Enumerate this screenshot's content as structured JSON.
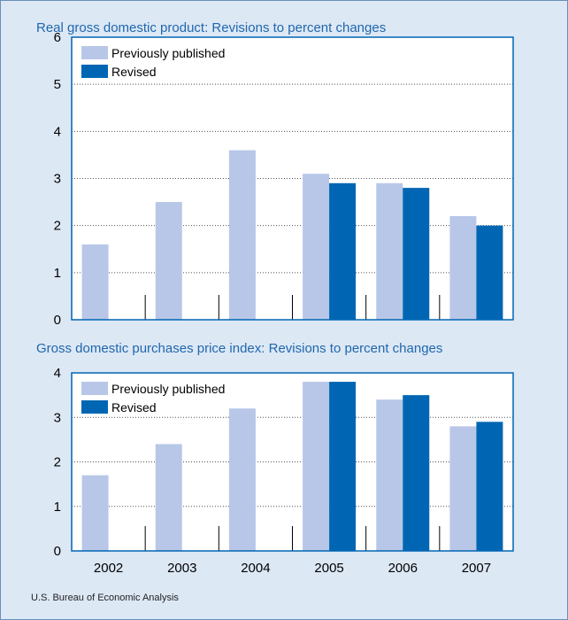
{
  "chart_data": [
    {
      "type": "bar",
      "title": "Real gross domestic product: Revisions to percent changes",
      "categories": [
        "2002",
        "2003",
        "2004",
        "2005",
        "2006",
        "2007"
      ],
      "series": [
        {
          "name": "Previously published",
          "values": [
            1.6,
            2.5,
            3.6,
            3.1,
            2.9,
            2.2
          ],
          "color": "#b8c7e8"
        },
        {
          "name": "Revised",
          "values": [
            null,
            null,
            null,
            2.9,
            2.8,
            2.0
          ],
          "color": "#0066b3"
        }
      ],
      "ylim": [
        0,
        6
      ],
      "yticks": [
        "0",
        "1",
        "2",
        "3",
        "4",
        "5",
        "6"
      ],
      "grid": true,
      "legend": "top-left"
    },
    {
      "type": "bar",
      "title": "Gross domestic purchases price index: Revisions to percent changes",
      "categories": [
        "2002",
        "2003",
        "2004",
        "2005",
        "2006",
        "2007"
      ],
      "series": [
        {
          "name": "Previously published",
          "values": [
            1.7,
            2.4,
            3.2,
            3.8,
            3.4,
            2.8
          ],
          "color": "#b8c7e8"
        },
        {
          "name": "Revised",
          "values": [
            null,
            null,
            null,
            3.8,
            3.5,
            2.9
          ],
          "color": "#0066b3"
        }
      ],
      "ylim": [
        0,
        4
      ],
      "yticks": [
        "0",
        "1",
        "2",
        "3",
        "4"
      ],
      "grid": true,
      "legend": "top-left"
    }
  ],
  "source": "U.S. Bureau of Economic Analysis",
  "colors": {
    "accent": "#1f67ad",
    "panel": "#dde8f5",
    "plot_border": "#0066b3"
  }
}
